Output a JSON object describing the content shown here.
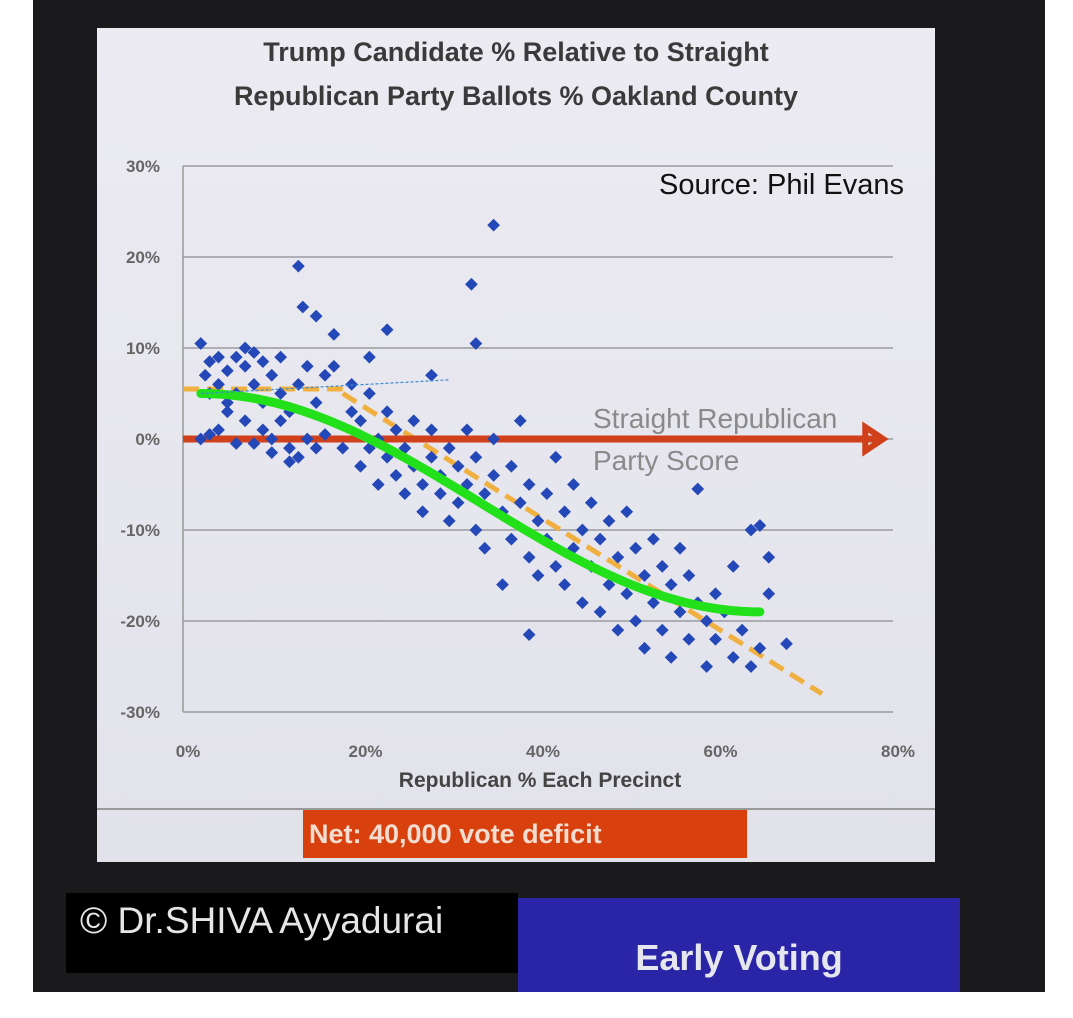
{
  "chart_data": {
    "type": "scatter",
    "title": "Trump Candidate % Relative to Straight Republican Party Ballots % Oakland County",
    "title_lines": [
      "Trump Candidate % Relative to Straight",
      "Republican Party Ballots % Oakland County"
    ],
    "xlabel": "Republican % Each Precinct",
    "ylabel": "",
    "xlim": [
      0,
      80
    ],
    "ylim": [
      -30,
      30
    ],
    "x_ticks": [
      "0%",
      "20%",
      "40%",
      "60%",
      "80%"
    ],
    "x_tick_values": [
      0,
      20,
      40,
      60,
      80
    ],
    "y_ticks": [
      "30%",
      "20%",
      "10%",
      "0%",
      "-10%",
      "-20%",
      "-30%"
    ],
    "y_tick_values": [
      30,
      20,
      10,
      0,
      -10,
      -20,
      -30
    ],
    "grid": "horizontal",
    "point_color": "#2448b8",
    "points": [
      [
        2,
        0
      ],
      [
        3,
        0.5
      ],
      [
        2.5,
        7
      ],
      [
        3,
        8.5
      ],
      [
        4,
        6
      ],
      [
        4,
        9
      ],
      [
        5,
        3
      ],
      [
        5,
        7.5
      ],
      [
        6,
        5
      ],
      [
        6,
        9
      ],
      [
        7,
        2
      ],
      [
        7,
        8
      ],
      [
        8,
        6
      ],
      [
        8,
        9.5
      ],
      [
        9,
        4
      ],
      [
        9,
        1
      ],
      [
        10,
        7
      ],
      [
        10,
        0
      ],
      [
        11,
        5
      ],
      [
        11,
        9
      ],
      [
        12,
        3
      ],
      [
        12,
        -1
      ],
      [
        13,
        6
      ],
      [
        13,
        -2
      ],
      [
        14,
        0
      ],
      [
        14,
        8
      ],
      [
        15,
        4
      ],
      [
        15,
        -1
      ],
      [
        16,
        7
      ],
      [
        16,
        0.5
      ],
      [
        4,
        1
      ],
      [
        6,
        -0.5
      ],
      [
        8,
        -0.5
      ],
      [
        10,
        -1.5
      ],
      [
        12,
        -2.5
      ],
      [
        7,
        10
      ],
      [
        3,
        5
      ],
      [
        5,
        4
      ],
      [
        9,
        8.5
      ],
      [
        11,
        2
      ],
      [
        17,
        8
      ],
      [
        18,
        -1
      ],
      [
        19,
        3
      ],
      [
        19,
        6
      ],
      [
        20,
        2
      ],
      [
        20,
        -3
      ],
      [
        21,
        -1
      ],
      [
        21,
        5
      ],
      [
        22,
        0
      ],
      [
        22,
        -5
      ],
      [
        23,
        -2
      ],
      [
        23,
        3
      ],
      [
        24,
        -4
      ],
      [
        24,
        1
      ],
      [
        25,
        -6
      ],
      [
        25,
        -1
      ],
      [
        26,
        -3
      ],
      [
        26,
        2
      ],
      [
        27,
        -8
      ],
      [
        27,
        -5
      ],
      [
        28,
        -2
      ],
      [
        28,
        1
      ],
      [
        29,
        -6
      ],
      [
        29,
        -4
      ],
      [
        30,
        -9
      ],
      [
        30,
        -1
      ],
      [
        31,
        -3
      ],
      [
        31,
        -7
      ],
      [
        32,
        -5
      ],
      [
        32,
        1
      ],
      [
        33,
        -10
      ],
      [
        33,
        -2
      ],
      [
        34,
        -6
      ],
      [
        34,
        -12
      ],
      [
        35,
        -4
      ],
      [
        35,
        0
      ],
      [
        36,
        -8
      ],
      [
        36,
        -16
      ],
      [
        37,
        -11
      ],
      [
        37,
        -3
      ],
      [
        38,
        -7
      ],
      [
        38,
        2
      ],
      [
        39,
        -13
      ],
      [
        39,
        -5
      ],
      [
        40,
        -9
      ],
      [
        40,
        -15
      ],
      [
        41,
        -6
      ],
      [
        41,
        -11
      ],
      [
        42,
        -14
      ],
      [
        42,
        -2
      ],
      [
        43,
        -8
      ],
      [
        43,
        -16
      ],
      [
        44,
        -12
      ],
      [
        44,
        -5
      ],
      [
        45,
        -10
      ],
      [
        45,
        -18
      ],
      [
        46,
        -14
      ],
      [
        46,
        -7
      ],
      [
        47,
        -11
      ],
      [
        47,
        -19
      ],
      [
        48,
        -16
      ],
      [
        48,
        -9
      ],
      [
        49,
        -13
      ],
      [
        49,
        -21
      ],
      [
        50,
        -17
      ],
      [
        50,
        -8
      ],
      [
        51,
        -12
      ],
      [
        51,
        -20
      ],
      [
        52,
        -15
      ],
      [
        52,
        -23
      ],
      [
        53,
        -18
      ],
      [
        53,
        -11
      ],
      [
        54,
        -21
      ],
      [
        54,
        -14
      ],
      [
        55,
        -16
      ],
      [
        55,
        -24
      ],
      [
        56,
        -19
      ],
      [
        56,
        -12
      ],
      [
        57,
        -22
      ],
      [
        57,
        -15
      ],
      [
        58,
        -18
      ],
      [
        58,
        -5.5
      ],
      [
        59,
        -20
      ],
      [
        59,
        -25
      ],
      [
        60,
        -17
      ],
      [
        60,
        -22
      ],
      [
        61,
        -19
      ],
      [
        62,
        -24
      ],
      [
        62,
        -14
      ],
      [
        63,
        -21
      ],
      [
        64,
        -10
      ],
      [
        64,
        -25
      ],
      [
        65,
        -9.5
      ],
      [
        65,
        -23
      ],
      [
        66,
        -13
      ],
      [
        66,
        -17
      ],
      [
        68,
        -22.5
      ],
      [
        35,
        23.5
      ],
      [
        13,
        19
      ],
      [
        32.5,
        17
      ],
      [
        33,
        10.5
      ],
      [
        13.5,
        14.5
      ],
      [
        15,
        13.5
      ],
      [
        17,
        11.5
      ],
      [
        23,
        12
      ],
      [
        2,
        10.5
      ],
      [
        39,
        -21.5
      ],
      [
        21,
        9
      ],
      [
        28,
        7
      ]
    ],
    "reference_line": {
      "label_lines": [
        "Straight Republican",
        "Party Score"
      ],
      "y": 0,
      "x_range": [
        0,
        78
      ],
      "color": "#d0401a"
    },
    "trend_curve": {
      "from": [
        2,
        5
      ],
      "to": [
        65,
        -19
      ],
      "color": "#22e01a"
    },
    "dashed_trend": {
      "flat": [
        [
          0,
          5.5
        ],
        [
          18,
          5.5
        ]
      ],
      "slope": [
        [
          18,
          5
        ],
        [
          72,
          -28
        ]
      ],
      "color": "#f0b040"
    },
    "blue_arrow": {
      "from": [
        2,
        5
      ],
      "to": [
        30,
        6.5
      ]
    },
    "source": "Source: Phil Evans"
  },
  "net_box": "Net:  40,000 vote deficit",
  "credit": "© Dr.SHIVA Ayyadurai",
  "early_voting": "Early Voting"
}
